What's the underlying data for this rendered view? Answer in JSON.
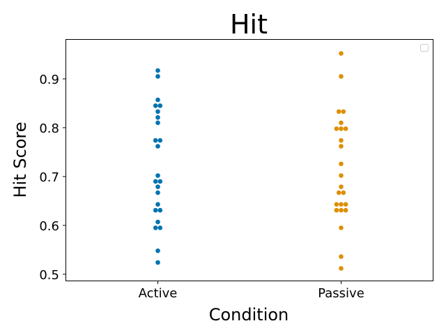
{
  "chart_data": {
    "type": "scatter",
    "subtype": "swarm",
    "title": "Hit",
    "xlabel": "Condition",
    "ylabel": "Hit Score",
    "categories": [
      "Active",
      "Passive"
    ],
    "ylim": [
      0.487,
      0.98
    ],
    "yticks": [
      "0.5",
      "0.6",
      "0.7",
      "0.8",
      "0.9"
    ],
    "grid": false,
    "legend": "top-right (empty)",
    "series": [
      {
        "category": "Active",
        "color": "#0173b2",
        "values": [
          0.917,
          0.905,
          0.857,
          0.845,
          0.845,
          0.833,
          0.821,
          0.81,
          0.774,
          0.774,
          0.762,
          0.702,
          0.69,
          0.69,
          0.679,
          0.667,
          0.643,
          0.631,
          0.631,
          0.607,
          0.595,
          0.595,
          0.548,
          0.524
        ]
      },
      {
        "category": "Passive",
        "color": "#de8f05",
        "values": [
          0.952,
          0.905,
          0.833,
          0.833,
          0.81,
          0.798,
          0.798,
          0.798,
          0.774,
          0.762,
          0.726,
          0.702,
          0.679,
          0.667,
          0.667,
          0.643,
          0.643,
          0.643,
          0.631,
          0.631,
          0.631,
          0.595,
          0.536,
          0.512
        ]
      }
    ]
  }
}
